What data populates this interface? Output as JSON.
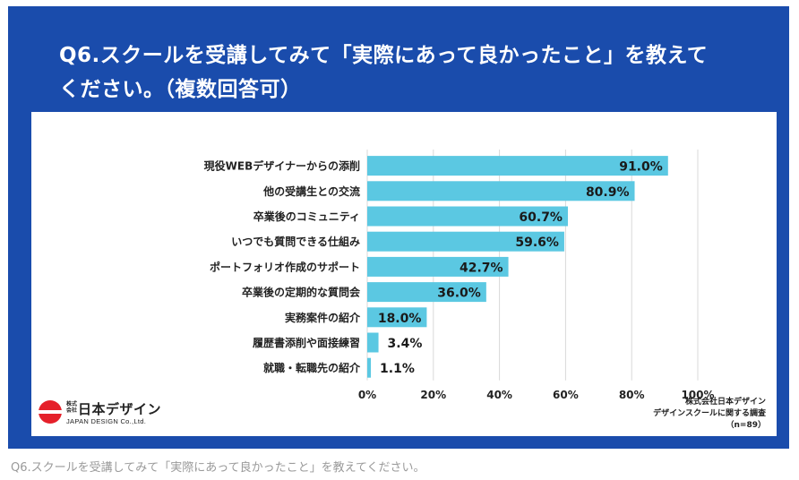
{
  "title": "Q6.スクールを受講してみて「実際にあって良かったこと」を教えてください。（複数回答可）",
  "title_line1": "Q6.スクールを受講してみて「実際にあって良かったこと」を教えて",
  "title_line2": "ください。（複数回答可）",
  "colors": {
    "frame": "#1a4cac",
    "bar": "#5bc8e2",
    "logo_red": "#e5202a"
  },
  "logo": {
    "small_text": "株式会社",
    "name": "日本デザイン",
    "english": "JAPAN DESIGN Co.,Ltd."
  },
  "source": {
    "line1": "株式会社日本デザイン",
    "line2": "デザインスクールに関する調査",
    "line3": "（n=89）"
  },
  "caption": "Q6.スクールを受講してみて「実際にあって良かったこと」を教えてください。",
  "chart_data": {
    "type": "bar",
    "orientation": "horizontal",
    "categories": [
      "現役WEBデザイナーからの添削",
      "他の受講生との交流",
      "卒業後のコミュニティ",
      "いつでも質問できる仕組み",
      "ポートフォリオ作成のサポート",
      "卒業後の定期的な質問会",
      "実務案件の紹介",
      "履歴書添削や面接練習",
      "就職・転職先の紹介"
    ],
    "values": [
      91.0,
      80.9,
      60.7,
      59.6,
      42.7,
      36.0,
      18.0,
      3.4,
      1.1
    ],
    "value_labels": [
      "91.0%",
      "80.9%",
      "60.7%",
      "59.6%",
      "42.7%",
      "36.0%",
      "18.0%",
      "3.4%",
      "1.1%"
    ],
    "xlim": [
      0,
      100
    ],
    "xticks": [
      0,
      20,
      40,
      60,
      80,
      100
    ],
    "xtick_labels": [
      "0%",
      "20%",
      "40%",
      "60%",
      "80%",
      "100%"
    ],
    "grid": true
  }
}
